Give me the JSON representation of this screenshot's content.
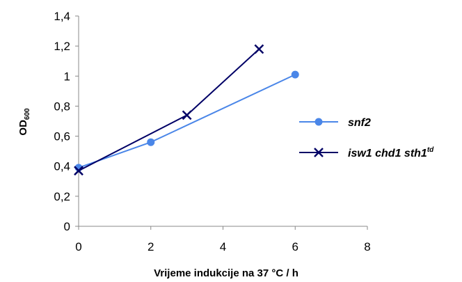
{
  "chart_data": {
    "type": "line",
    "xlabel": "Vrijeme indukcije na 37 °C / h",
    "ylabel": "OD",
    "ylabel_sub": "600",
    "xlim": [
      0,
      8
    ],
    "ylim": [
      0,
      1.4
    ],
    "x_ticks": [
      "0",
      "2",
      "4",
      "6",
      "8"
    ],
    "y_ticks": [
      "0",
      "0,2",
      "0,4",
      "0,6",
      "0,8",
      "1",
      "1,2",
      "1,4"
    ],
    "grid": false,
    "legend_position": "right",
    "series": [
      {
        "name": "snf2",
        "color": "#4a86e8",
        "marker": "circle",
        "x": [
          0,
          2,
          6
        ],
        "y": [
          0.39,
          0.56,
          1.01
        ]
      },
      {
        "name": "isw1 chd1 sth1",
        "name_sup": "td",
        "color": "#000066",
        "marker": "x",
        "x": [
          0,
          3,
          5
        ],
        "y": [
          0.37,
          0.74,
          1.18
        ]
      }
    ]
  }
}
